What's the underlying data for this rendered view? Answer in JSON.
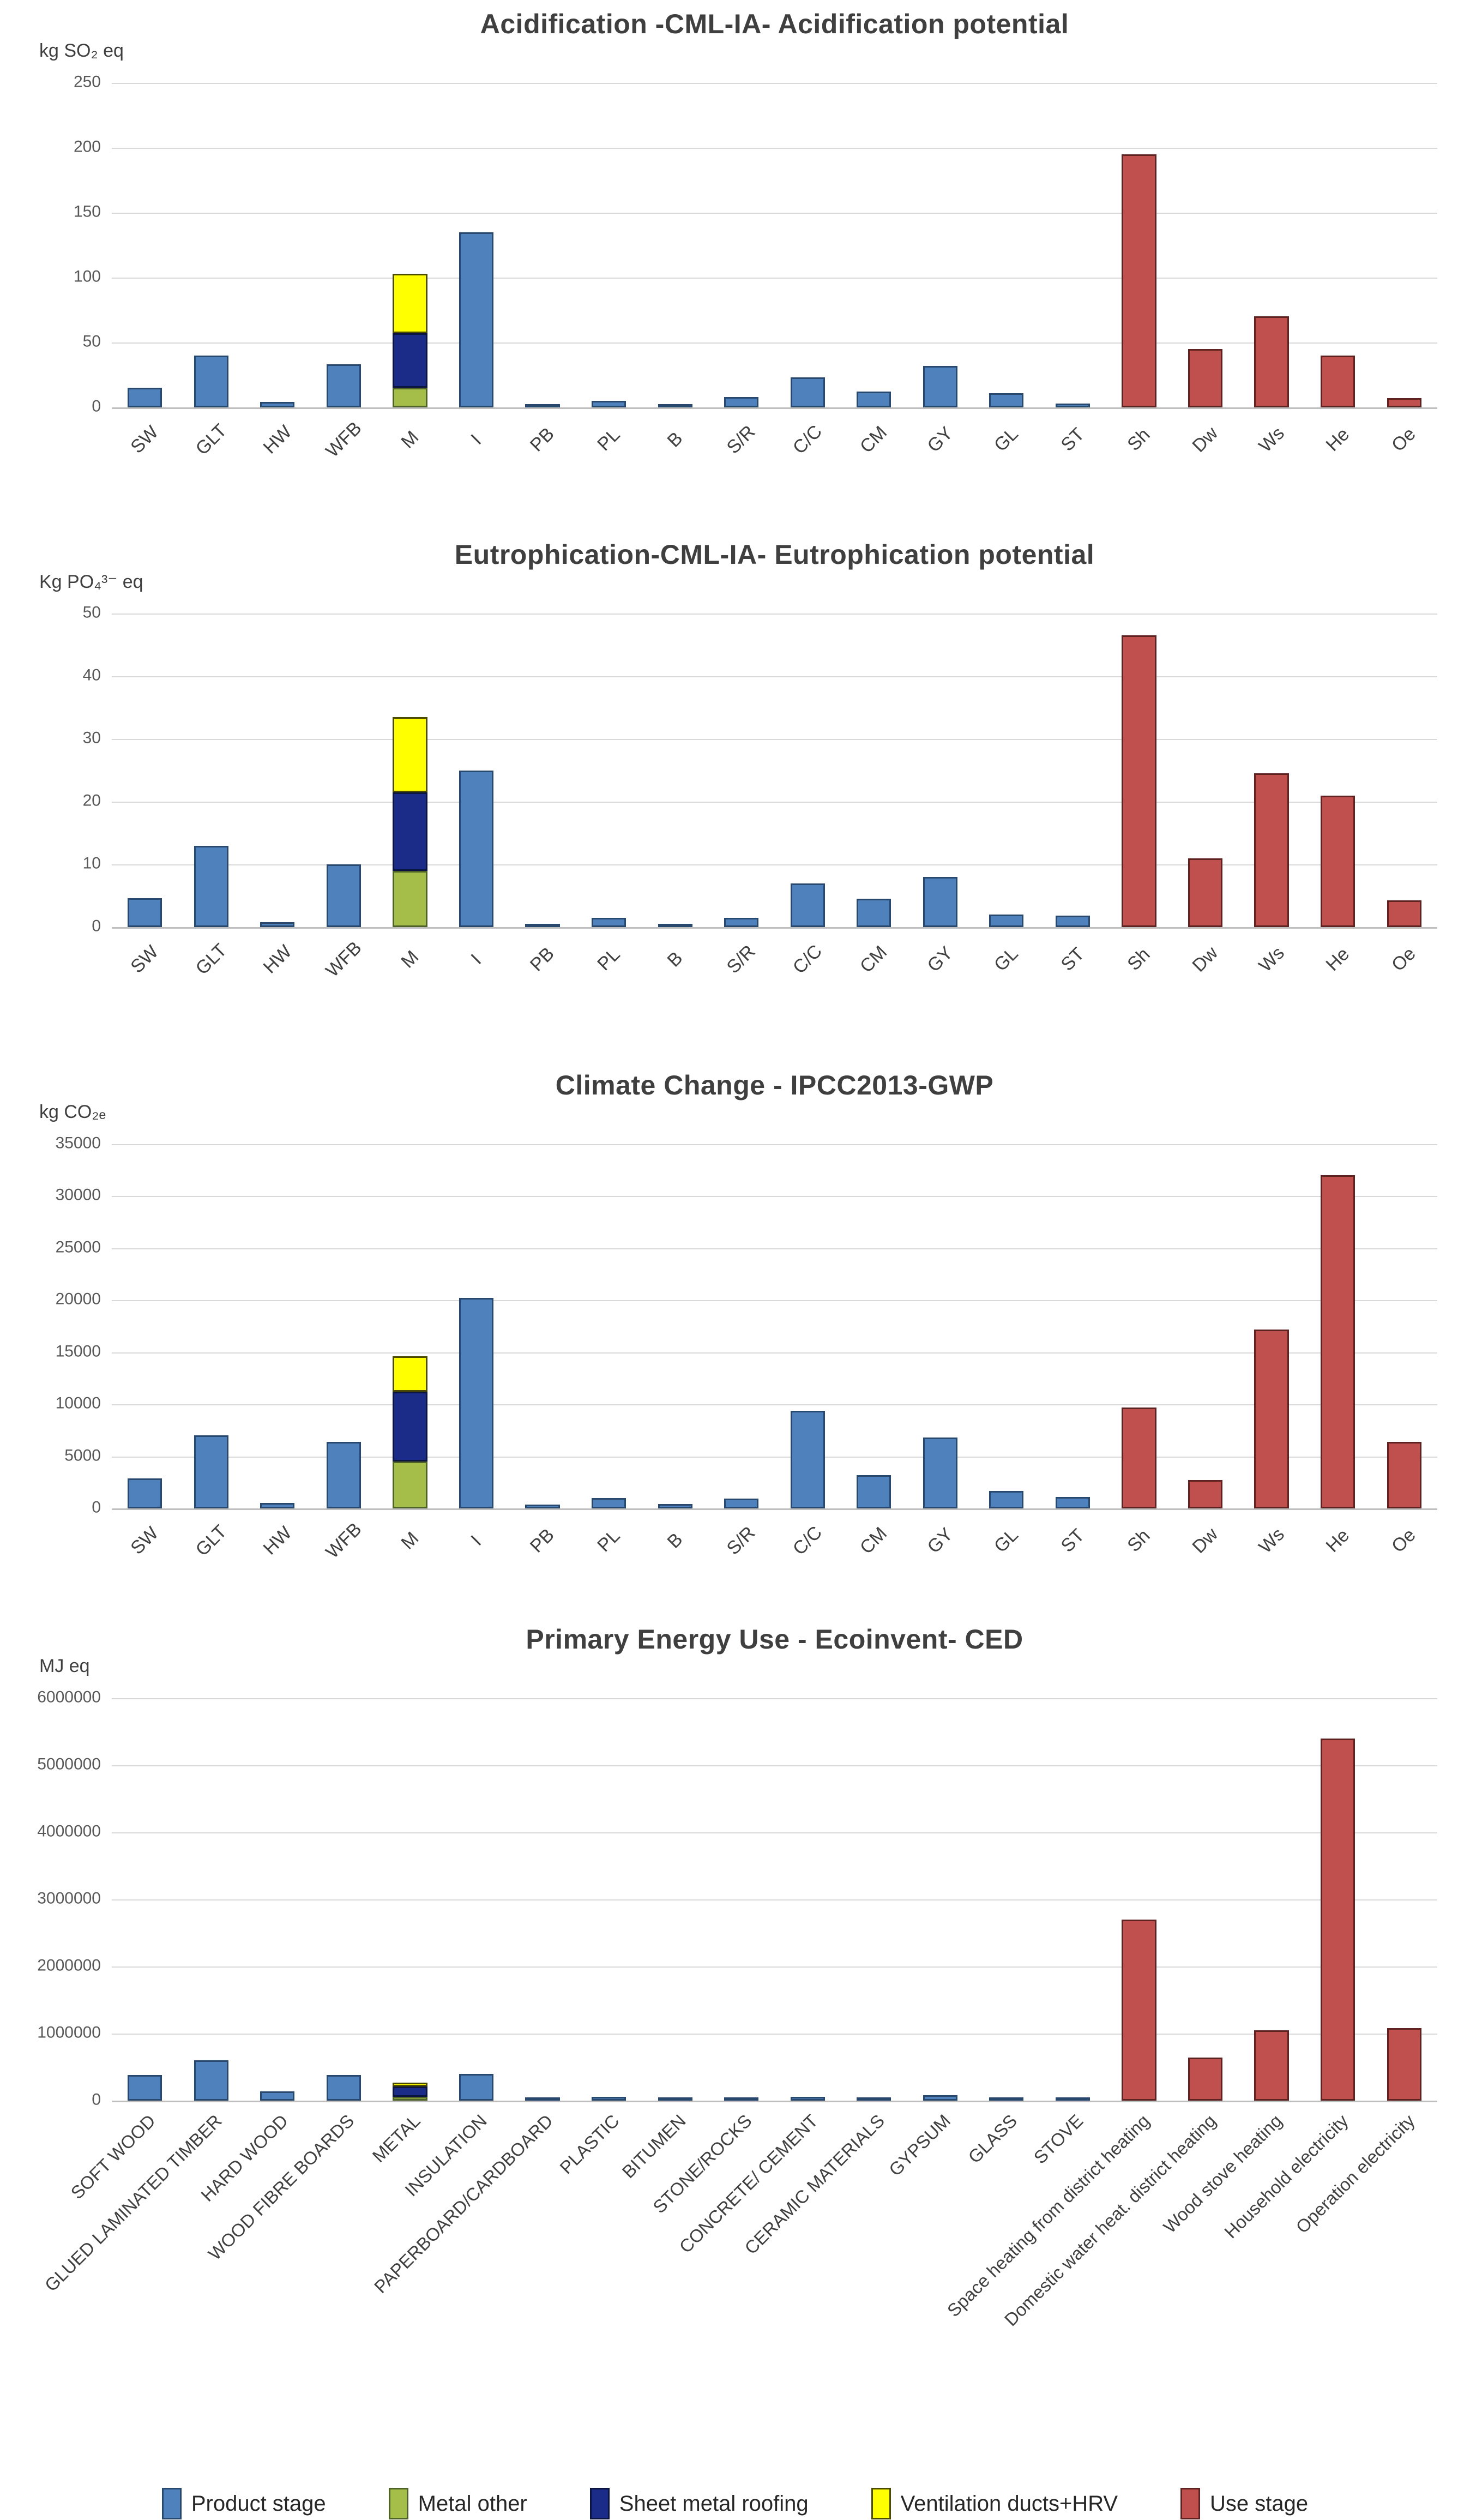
{
  "page": {
    "background": "#ffffff"
  },
  "legend": {
    "items": [
      {
        "label": "Product stage",
        "color": "#4F81BD",
        "border": "#29486D"
      },
      {
        "label": "Metal other",
        "color": "#A5BE4A",
        "border": "#4F6228"
      },
      {
        "label": "Sheet metal roofing",
        "color": "#1A2B88",
        "border": "#0C1440"
      },
      {
        "label": "Ventilation  ducts+HRV",
        "color": "#FFFF00",
        "border": "#4A4A00"
      },
      {
        "label": "Use stage",
        "color": "#C0504D",
        "border": "#5E2320"
      }
    ]
  },
  "chart_data": [
    {
      "id": "acidification",
      "type": "bar",
      "title": "Acidification -CML-IA- Acidification potential",
      "unit": "kg SO₂ eq",
      "ylim": [
        0,
        250
      ],
      "ymax": 250,
      "grid": true,
      "yticks": [
        "250",
        "200",
        "150",
        "100",
        "50",
        "0"
      ],
      "bars": [
        {
          "label": "SW",
          "segments": [
            {
              "series": "Product stage",
              "value": 15
            }
          ]
        },
        {
          "label": "GLT",
          "segments": [
            {
              "series": "Product stage",
              "value": 40
            }
          ]
        },
        {
          "label": "HW",
          "segments": [
            {
              "series": "Product stage",
              "value": 4
            }
          ]
        },
        {
          "label": "WFB",
          "segments": [
            {
              "series": "Product stage",
              "value": 33
            }
          ]
        },
        {
          "label": "M",
          "segments": [
            {
              "series": "Metal other",
              "value": 15
            },
            {
              "series": "Sheet metal roofing",
              "value": 42
            },
            {
              "series": "Ventilation  ducts+HRV",
              "value": 46
            }
          ]
        },
        {
          "label": "I",
          "segments": [
            {
              "series": "Product stage",
              "value": 135
            }
          ]
        },
        {
          "label": "PB",
          "segments": [
            {
              "series": "Product stage",
              "value": 2
            }
          ]
        },
        {
          "label": "PL",
          "segments": [
            {
              "series": "Product stage",
              "value": 5
            }
          ]
        },
        {
          "label": "B",
          "segments": [
            {
              "series": "Product stage",
              "value": 2
            }
          ]
        },
        {
          "label": "S/R",
          "segments": [
            {
              "series": "Product stage",
              "value": 8
            }
          ]
        },
        {
          "label": "C/C",
          "segments": [
            {
              "series": "Product stage",
              "value": 23
            }
          ]
        },
        {
          "label": "CM",
          "segments": [
            {
              "series": "Product stage",
              "value": 12
            }
          ]
        },
        {
          "label": "GY",
          "segments": [
            {
              "series": "Product stage",
              "value": 32
            }
          ]
        },
        {
          "label": "GL",
          "segments": [
            {
              "series": "Product stage",
              "value": 11
            }
          ]
        },
        {
          "label": "ST",
          "segments": [
            {
              "series": "Product stage",
              "value": 3
            }
          ]
        },
        {
          "label": "Sh",
          "segments": [
            {
              "series": "Use stage",
              "value": 195
            }
          ]
        },
        {
          "label": "Dw",
          "segments": [
            {
              "series": "Use stage",
              "value": 45
            }
          ]
        },
        {
          "label": "Ws",
          "segments": [
            {
              "series": "Use stage",
              "value": 70
            }
          ]
        },
        {
          "label": "He",
          "segments": [
            {
              "series": "Use stage",
              "value": 40
            }
          ]
        },
        {
          "label": "Oe",
          "segments": [
            {
              "series": "Use stage",
              "value": 7
            }
          ]
        }
      ]
    },
    {
      "id": "eutrophication",
      "type": "bar",
      "title": "Eutrophication-CML-IA- Eutrophication potential",
      "unit": "Kg PO₄³⁻ eq",
      "ylim": [
        0,
        50
      ],
      "ymax": 50,
      "grid": true,
      "yticks": [
        "50",
        "40",
        "30",
        "20",
        "10",
        "0"
      ],
      "bars": [
        {
          "label": "SW",
          "segments": [
            {
              "series": "Product stage",
              "value": 4.6
            }
          ]
        },
        {
          "label": "GLT",
          "segments": [
            {
              "series": "Product stage",
              "value": 13
            }
          ]
        },
        {
          "label": "HW",
          "segments": [
            {
              "series": "Product stage",
              "value": 0.8
            }
          ]
        },
        {
          "label": "WFB",
          "segments": [
            {
              "series": "Product stage",
              "value": 10
            }
          ]
        },
        {
          "label": "M",
          "segments": [
            {
              "series": "Metal other",
              "value": 9
            },
            {
              "series": "Sheet metal roofing",
              "value": 12.5
            },
            {
              "series": "Ventilation  ducts+HRV",
              "value": 12
            }
          ]
        },
        {
          "label": "I",
          "segments": [
            {
              "series": "Product stage",
              "value": 25
            }
          ]
        },
        {
          "label": "PB",
          "segments": [
            {
              "series": "Product stage",
              "value": 0.5
            }
          ]
        },
        {
          "label": "PL",
          "segments": [
            {
              "series": "Product stage",
              "value": 1.5
            }
          ]
        },
        {
          "label": "B",
          "segments": [
            {
              "series": "Product stage",
              "value": 0.4
            }
          ]
        },
        {
          "label": "S/R",
          "segments": [
            {
              "series": "Product stage",
              "value": 1.5
            }
          ]
        },
        {
          "label": "C/C",
          "segments": [
            {
              "series": "Product stage",
              "value": 7
            }
          ]
        },
        {
          "label": "CM",
          "segments": [
            {
              "series": "Product stage",
              "value": 4.5
            }
          ]
        },
        {
          "label": "GY",
          "segments": [
            {
              "series": "Product stage",
              "value": 8
            }
          ]
        },
        {
          "label": "GL",
          "segments": [
            {
              "series": "Product stage",
              "value": 2
            }
          ]
        },
        {
          "label": "ST",
          "segments": [
            {
              "series": "Product stage",
              "value": 1.8
            }
          ]
        },
        {
          "label": "Sh",
          "segments": [
            {
              "series": "Use stage",
              "value": 46.5
            }
          ]
        },
        {
          "label": "Dw",
          "segments": [
            {
              "series": "Use stage",
              "value": 11
            }
          ]
        },
        {
          "label": "Ws",
          "segments": [
            {
              "series": "Use stage",
              "value": 24.5
            }
          ]
        },
        {
          "label": "He",
          "segments": [
            {
              "series": "Use stage",
              "value": 21
            }
          ]
        },
        {
          "label": "Oe",
          "segments": [
            {
              "series": "Use stage",
              "value": 4.3
            }
          ]
        }
      ]
    },
    {
      "id": "climate-change",
      "type": "bar",
      "title": "Climate Change - IPCC2013-GWP",
      "unit": "kg CO₂ₑ",
      "ylim": [
        0,
        35000
      ],
      "ymax": 35000,
      "grid": true,
      "yticks": [
        "35000",
        "30000",
        "25000",
        "20000",
        "15000",
        "10000",
        "5000",
        "0"
      ],
      "bars": [
        {
          "label": "SW",
          "segments": [
            {
              "series": "Product stage",
              "value": 2900
            }
          ]
        },
        {
          "label": "GLT",
          "segments": [
            {
              "series": "Product stage",
              "value": 7000
            }
          ]
        },
        {
          "label": "HW",
          "segments": [
            {
              "series": "Product stage",
              "value": 500
            }
          ]
        },
        {
          "label": "WFB",
          "segments": [
            {
              "series": "Product stage",
              "value": 6400
            }
          ]
        },
        {
          "label": "M",
          "segments": [
            {
              "series": "Metal other",
              "value": 4500
            },
            {
              "series": "Sheet metal roofing",
              "value": 6700
            },
            {
              "series": "Ventilation  ducts+HRV",
              "value": 3400
            }
          ]
        },
        {
          "label": "I",
          "segments": [
            {
              "series": "Product stage",
              "value": 20200
            }
          ]
        },
        {
          "label": "PB",
          "segments": [
            {
              "series": "Product stage",
              "value": 350
            }
          ]
        },
        {
          "label": "PL",
          "segments": [
            {
              "series": "Product stage",
              "value": 1000
            }
          ]
        },
        {
          "label": "B",
          "segments": [
            {
              "series": "Product stage",
              "value": 400
            }
          ]
        },
        {
          "label": "S/R",
          "segments": [
            {
              "series": "Product stage",
              "value": 950
            }
          ]
        },
        {
          "label": "C/C",
          "segments": [
            {
              "series": "Product stage",
              "value": 9400
            }
          ]
        },
        {
          "label": "CM",
          "segments": [
            {
              "series": "Product stage",
              "value": 3200
            }
          ]
        },
        {
          "label": "GY",
          "segments": [
            {
              "series": "Product stage",
              "value": 6800
            }
          ]
        },
        {
          "label": "GL",
          "segments": [
            {
              "series": "Product stage",
              "value": 1700
            }
          ]
        },
        {
          "label": "ST",
          "segments": [
            {
              "series": "Product stage",
              "value": 1100
            }
          ]
        },
        {
          "label": "Sh",
          "segments": [
            {
              "series": "Use stage",
              "value": 9700
            }
          ]
        },
        {
          "label": "Dw",
          "segments": [
            {
              "series": "Use stage",
              "value": 2700
            }
          ]
        },
        {
          "label": "Ws",
          "segments": [
            {
              "series": "Use stage",
              "value": 17200
            }
          ]
        },
        {
          "label": "He",
          "segments": [
            {
              "series": "Use stage",
              "value": 32000
            }
          ]
        },
        {
          "label": "Oe",
          "segments": [
            {
              "series": "Use stage",
              "value": 6400
            }
          ]
        }
      ]
    },
    {
      "id": "primary-energy",
      "type": "bar",
      "title": "Primary Energy Use - Ecoinvent- CED",
      "unit": "MJ eq",
      "ylim": [
        0,
        6000000
      ],
      "ymax": 6000000,
      "grid": true,
      "yticks": [
        "6000000",
        "5000000",
        "4000000",
        "3000000",
        "2000000",
        "1000000",
        "0"
      ],
      "bars": [
        {
          "label": "SOFT WOOD",
          "segments": [
            {
              "series": "Product stage",
              "value": 380000
            }
          ]
        },
        {
          "label": "GLUED LAMINATED TIMBER",
          "segments": [
            {
              "series": "Product stage",
              "value": 600000
            }
          ]
        },
        {
          "label": "HARD WOOD",
          "segments": [
            {
              "series": "Product stage",
              "value": 140000
            }
          ]
        },
        {
          "label": "WOOD FIBRE BOARDS",
          "segments": [
            {
              "series": "Product stage",
              "value": 380000
            }
          ]
        },
        {
          "label": "METAL",
          "segments": [
            {
              "series": "Metal other",
              "value": 60000
            },
            {
              "series": "Sheet metal roofing",
              "value": 150000
            },
            {
              "series": "Ventilation  ducts+HRV",
              "value": 60000
            }
          ]
        },
        {
          "label": "INSULATION",
          "segments": [
            {
              "series": "Product stage",
              "value": 400000
            }
          ]
        },
        {
          "label": "PAPERBOARD/CARDBOARD",
          "segments": [
            {
              "series": "Product stage",
              "value": 40000
            }
          ]
        },
        {
          "label": "PLASTIC",
          "segments": [
            {
              "series": "Product stage",
              "value": 60000
            }
          ]
        },
        {
          "label": "BITUMEN",
          "segments": [
            {
              "series": "Product stage",
              "value": 30000
            }
          ]
        },
        {
          "label": "STONE/ROCKS",
          "segments": [
            {
              "series": "Product stage",
              "value": 40000
            }
          ]
        },
        {
          "label": "CONCRETE/ CEMENT",
          "segments": [
            {
              "series": "Product stage",
              "value": 60000
            }
          ]
        },
        {
          "label": "CERAMIC MATERIALS",
          "segments": [
            {
              "series": "Product stage",
              "value": 50000
            }
          ]
        },
        {
          "label": "GYPSUM",
          "segments": [
            {
              "series": "Product stage",
              "value": 80000
            }
          ]
        },
        {
          "label": "GLASS",
          "segments": [
            {
              "series": "Product stage",
              "value": 30000
            }
          ]
        },
        {
          "label": "STOVE",
          "segments": [
            {
              "series": "Product stage",
              "value": 35000
            }
          ]
        },
        {
          "label": "Space heating from district heating",
          "segments": [
            {
              "series": "Use stage",
              "value": 2700000
            }
          ]
        },
        {
          "label": "Domestic water heat. district heating",
          "segments": [
            {
              "series": "Use stage",
              "value": 640000
            }
          ]
        },
        {
          "label": "Wood stove heating",
          "segments": [
            {
              "series": "Use stage",
              "value": 1050000
            }
          ]
        },
        {
          "label": "Household electricity",
          "segments": [
            {
              "series": "Use stage",
              "value": 5400000
            }
          ]
        },
        {
          "label": "Operation electricity",
          "segments": [
            {
              "series": "Use stage",
              "value": 1080000
            }
          ]
        }
      ]
    }
  ]
}
